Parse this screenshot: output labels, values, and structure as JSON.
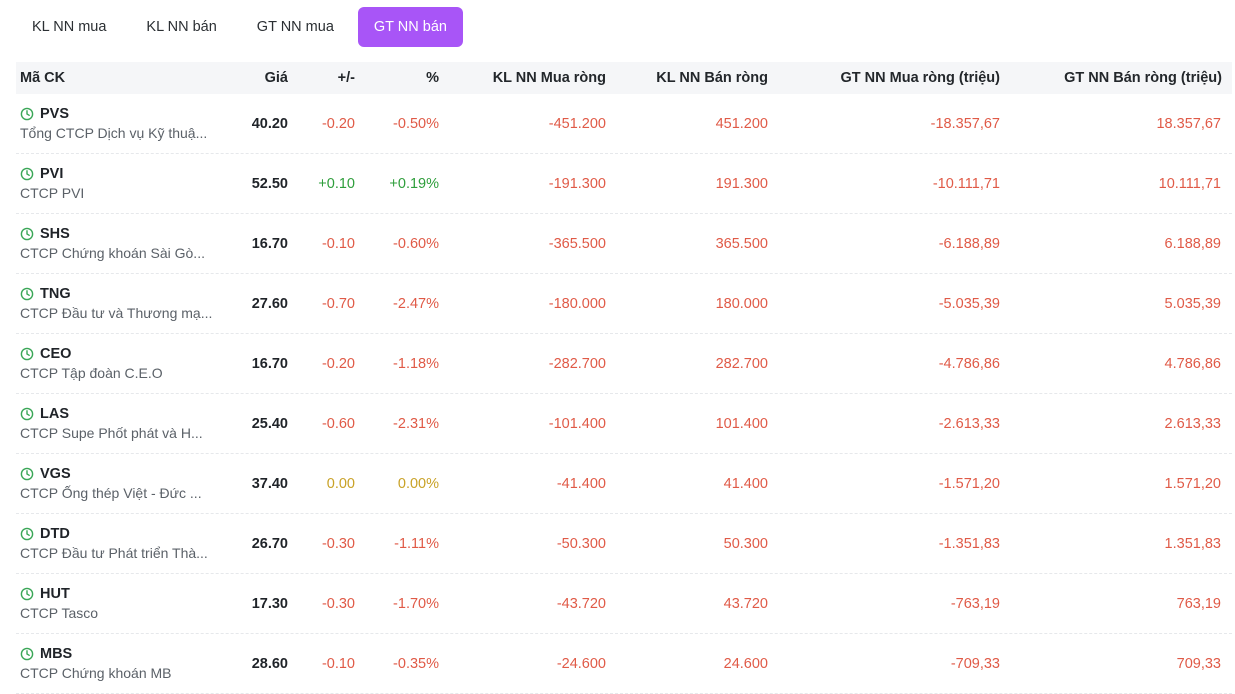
{
  "tabs": [
    {
      "label": "KL NN mua",
      "active": false
    },
    {
      "label": "KL NN bán",
      "active": false
    },
    {
      "label": "GT NN mua",
      "active": false
    },
    {
      "label": "GT NN bán",
      "active": true
    }
  ],
  "colors": {
    "accent": "#a855f7",
    "down": "#e05a47",
    "up": "#2e9e3b",
    "flat": "#c9a227",
    "clock": "#3aa657"
  },
  "table": {
    "headers": [
      "Mã CK",
      "Giá",
      "+/-",
      "%",
      "KL NN Mua ròng",
      "KL NN Bán ròng",
      "GT NN Mua ròng (triệu)",
      "GT NN Bán ròng (triệu)"
    ],
    "rows": [
      {
        "symbol": "PVS",
        "name": "Tổng CTCP Dịch vụ Kỹ thuậ...",
        "price": "40.20",
        "change": "-0.20",
        "pct": "-0.50%",
        "trend": "down",
        "kl_buy": "-451.200",
        "kl_sell": "451.200",
        "gt_buy": "-18.357,67",
        "gt_sell": "18.357,67"
      },
      {
        "symbol": "PVI",
        "name": "CTCP PVI",
        "price": "52.50",
        "change": "+0.10",
        "pct": "+0.19%",
        "trend": "up",
        "kl_buy": "-191.300",
        "kl_sell": "191.300",
        "gt_buy": "-10.111,71",
        "gt_sell": "10.111,71"
      },
      {
        "symbol": "SHS",
        "name": "CTCP Chứng khoán Sài Gò...",
        "price": "16.70",
        "change": "-0.10",
        "pct": "-0.60%",
        "trend": "down",
        "kl_buy": "-365.500",
        "kl_sell": "365.500",
        "gt_buy": "-6.188,89",
        "gt_sell": "6.188,89"
      },
      {
        "symbol": "TNG",
        "name": "CTCP Đầu tư và Thương mạ...",
        "price": "27.60",
        "change": "-0.70",
        "pct": "-2.47%",
        "trend": "down",
        "kl_buy": "-180.000",
        "kl_sell": "180.000",
        "gt_buy": "-5.035,39",
        "gt_sell": "5.035,39"
      },
      {
        "symbol": "CEO",
        "name": "CTCP Tập đoàn C.E.O",
        "price": "16.70",
        "change": "-0.20",
        "pct": "-1.18%",
        "trend": "down",
        "kl_buy": "-282.700",
        "kl_sell": "282.700",
        "gt_buy": "-4.786,86",
        "gt_sell": "4.786,86"
      },
      {
        "symbol": "LAS",
        "name": "CTCP Supe Phốt phát và H...",
        "price": "25.40",
        "change": "-0.60",
        "pct": "-2.31%",
        "trend": "down",
        "kl_buy": "-101.400",
        "kl_sell": "101.400",
        "gt_buy": "-2.613,33",
        "gt_sell": "2.613,33"
      },
      {
        "symbol": "VGS",
        "name": "CTCP Ống thép Việt - Đức ...",
        "price": "37.40",
        "change": "0.00",
        "pct": "0.00%",
        "trend": "flat",
        "kl_buy": "-41.400",
        "kl_sell": "41.400",
        "gt_buy": "-1.571,20",
        "gt_sell": "1.571,20"
      },
      {
        "symbol": "DTD",
        "name": "CTCP Đầu tư Phát triển Thà...",
        "price": "26.70",
        "change": "-0.30",
        "pct": "-1.11%",
        "trend": "down",
        "kl_buy": "-50.300",
        "kl_sell": "50.300",
        "gt_buy": "-1.351,83",
        "gt_sell": "1.351,83"
      },
      {
        "symbol": "HUT",
        "name": "CTCP Tasco",
        "price": "17.30",
        "change": "-0.30",
        "pct": "-1.70%",
        "trend": "down",
        "kl_buy": "-43.720",
        "kl_sell": "43.720",
        "gt_buy": "-763,19",
        "gt_sell": "763,19"
      },
      {
        "symbol": "MBS",
        "name": "CTCP Chứng khoán MB",
        "price": "28.60",
        "change": "-0.10",
        "pct": "-0.35%",
        "trend": "down",
        "kl_buy": "-24.600",
        "kl_sell": "24.600",
        "gt_buy": "-709,33",
        "gt_sell": "709,33"
      }
    ]
  }
}
